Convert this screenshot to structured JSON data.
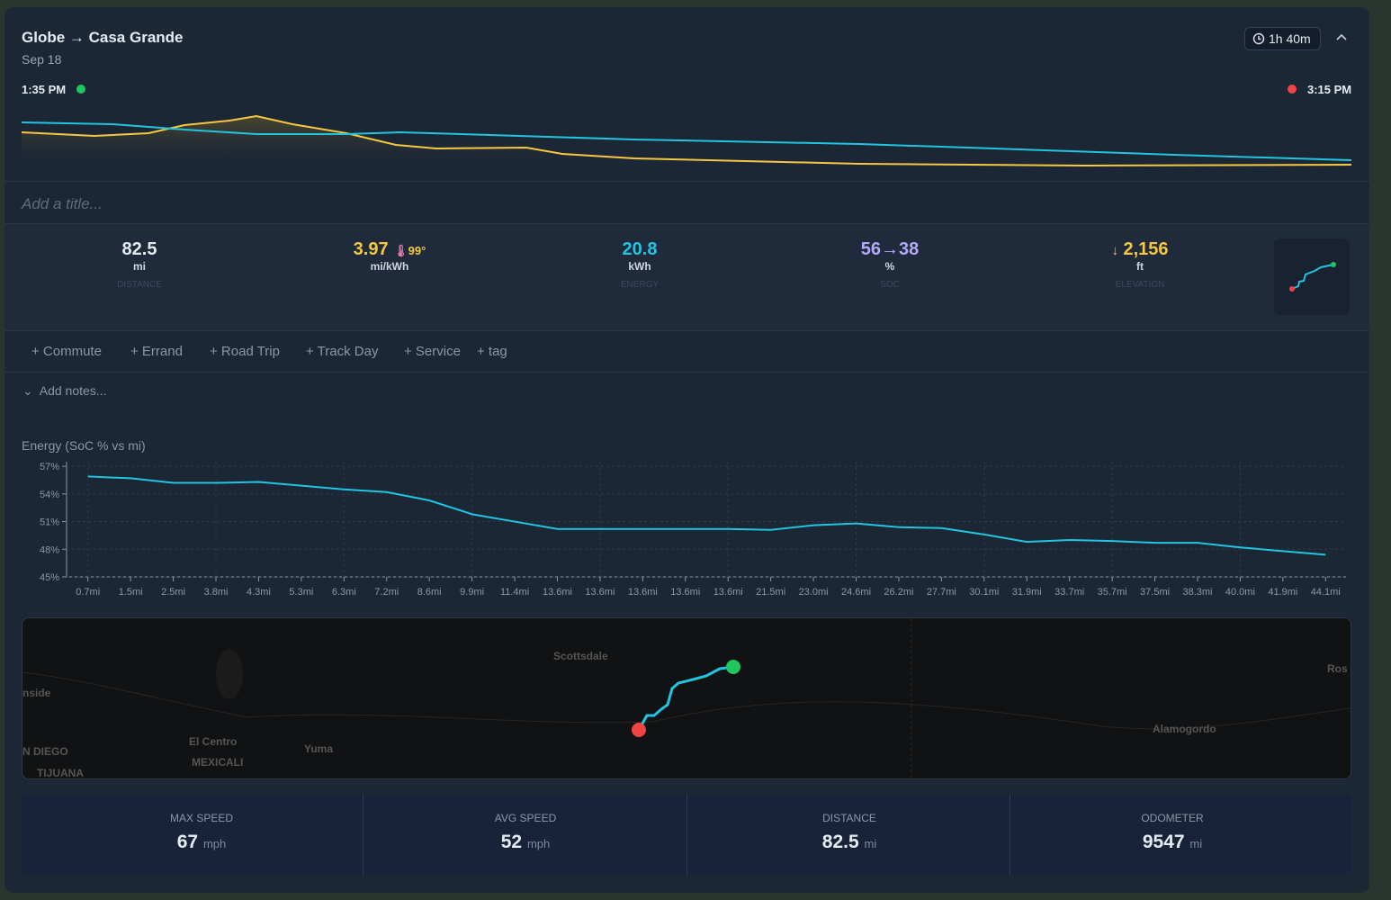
{
  "header": {
    "title": "Globe → Casa Grande",
    "date": "Sep 18",
    "duration": "1h 40m",
    "start_time": "1:35 PM",
    "end_time": "3:15 PM"
  },
  "title_placeholder": "Add a title...",
  "stats": [
    {
      "value": "82.5",
      "unit": "mi",
      "label": "DISTANCE"
    },
    {
      "value": "3.97",
      "extra": "99°",
      "unit": "mi/kWh"
    },
    {
      "value": "20.8",
      "unit": "kWh",
      "label": "ENERGY"
    },
    {
      "value": "56→38",
      "unit": "%",
      "label": "SOC"
    },
    {
      "value": "2,156",
      "unit": "ft",
      "label": "ELEVATION"
    }
  ],
  "tags": [
    "+ Commute",
    "+ Errand",
    "+ Road Trip",
    "+ Track Day",
    "+ Service",
    "+ tag"
  ],
  "notes_placeholder": "Add notes...",
  "chart_data": {
    "type": "line",
    "title": "Energy (SoC % vs mi)",
    "categories": [
      "0.7mi",
      "1.5mi",
      "2.5mi",
      "3.8mi",
      "4.3mi",
      "5.3mi",
      "6.3mi",
      "7.2mi",
      "8.6mi",
      "9.9mi",
      "11.4mi",
      "13.6mi",
      "13.6mi",
      "13.6mi",
      "13.6mi",
      "13.6mi",
      "21.5mi",
      "23.0mi",
      "24.6mi",
      "26.2mi",
      "27.7mi",
      "30.1mi",
      "31.9mi",
      "33.7mi",
      "35.7mi",
      "37.5mi",
      "38.3mi",
      "40.0mi",
      "41.9mi",
      "44.1mi"
    ],
    "series": [
      {
        "name": "SoC",
        "color": "#22c5e0",
        "values": [
          55.9,
          55.7,
          55.2,
          55.2,
          55.3,
          54.9,
          54.5,
          54.2,
          53.3,
          51.8,
          51.0,
          50.2,
          50.2,
          50.2,
          50.2,
          50.2,
          50.1,
          50.6,
          50.8,
          50.4,
          50.3,
          49.6,
          48.8,
          49.0,
          48.9,
          48.7,
          48.7,
          48.2,
          47.8,
          47.4
        ]
      }
    ],
    "ylim": [
      45,
      57.5
    ],
    "yticks": [
      {
        "value": 45,
        "label": "45%"
      },
      {
        "value": 48,
        "label": "48%"
      },
      {
        "value": 51,
        "label": "51%"
      },
      {
        "value": 54,
        "label": "54%"
      },
      {
        "value": 57,
        "label": "57%"
      }
    ],
    "grid": true
  },
  "map_labels": [
    "Scottsdale",
    "El Centro",
    "Yuma",
    "MEXICALI",
    "N DIEGO",
    "TIJUANA",
    "nside",
    "Alamogordo",
    "Ros"
  ],
  "summary": [
    {
      "label": "MAX SPEED",
      "value": "67",
      "unit": "mph"
    },
    {
      "label": "AVG SPEED",
      "value": "52",
      "unit": "mph"
    },
    {
      "label": "DISTANCE",
      "value": "82.5",
      "unit": "mi"
    },
    {
      "label": "ODOMETER",
      "value": "9547",
      "unit": "mi"
    }
  ]
}
